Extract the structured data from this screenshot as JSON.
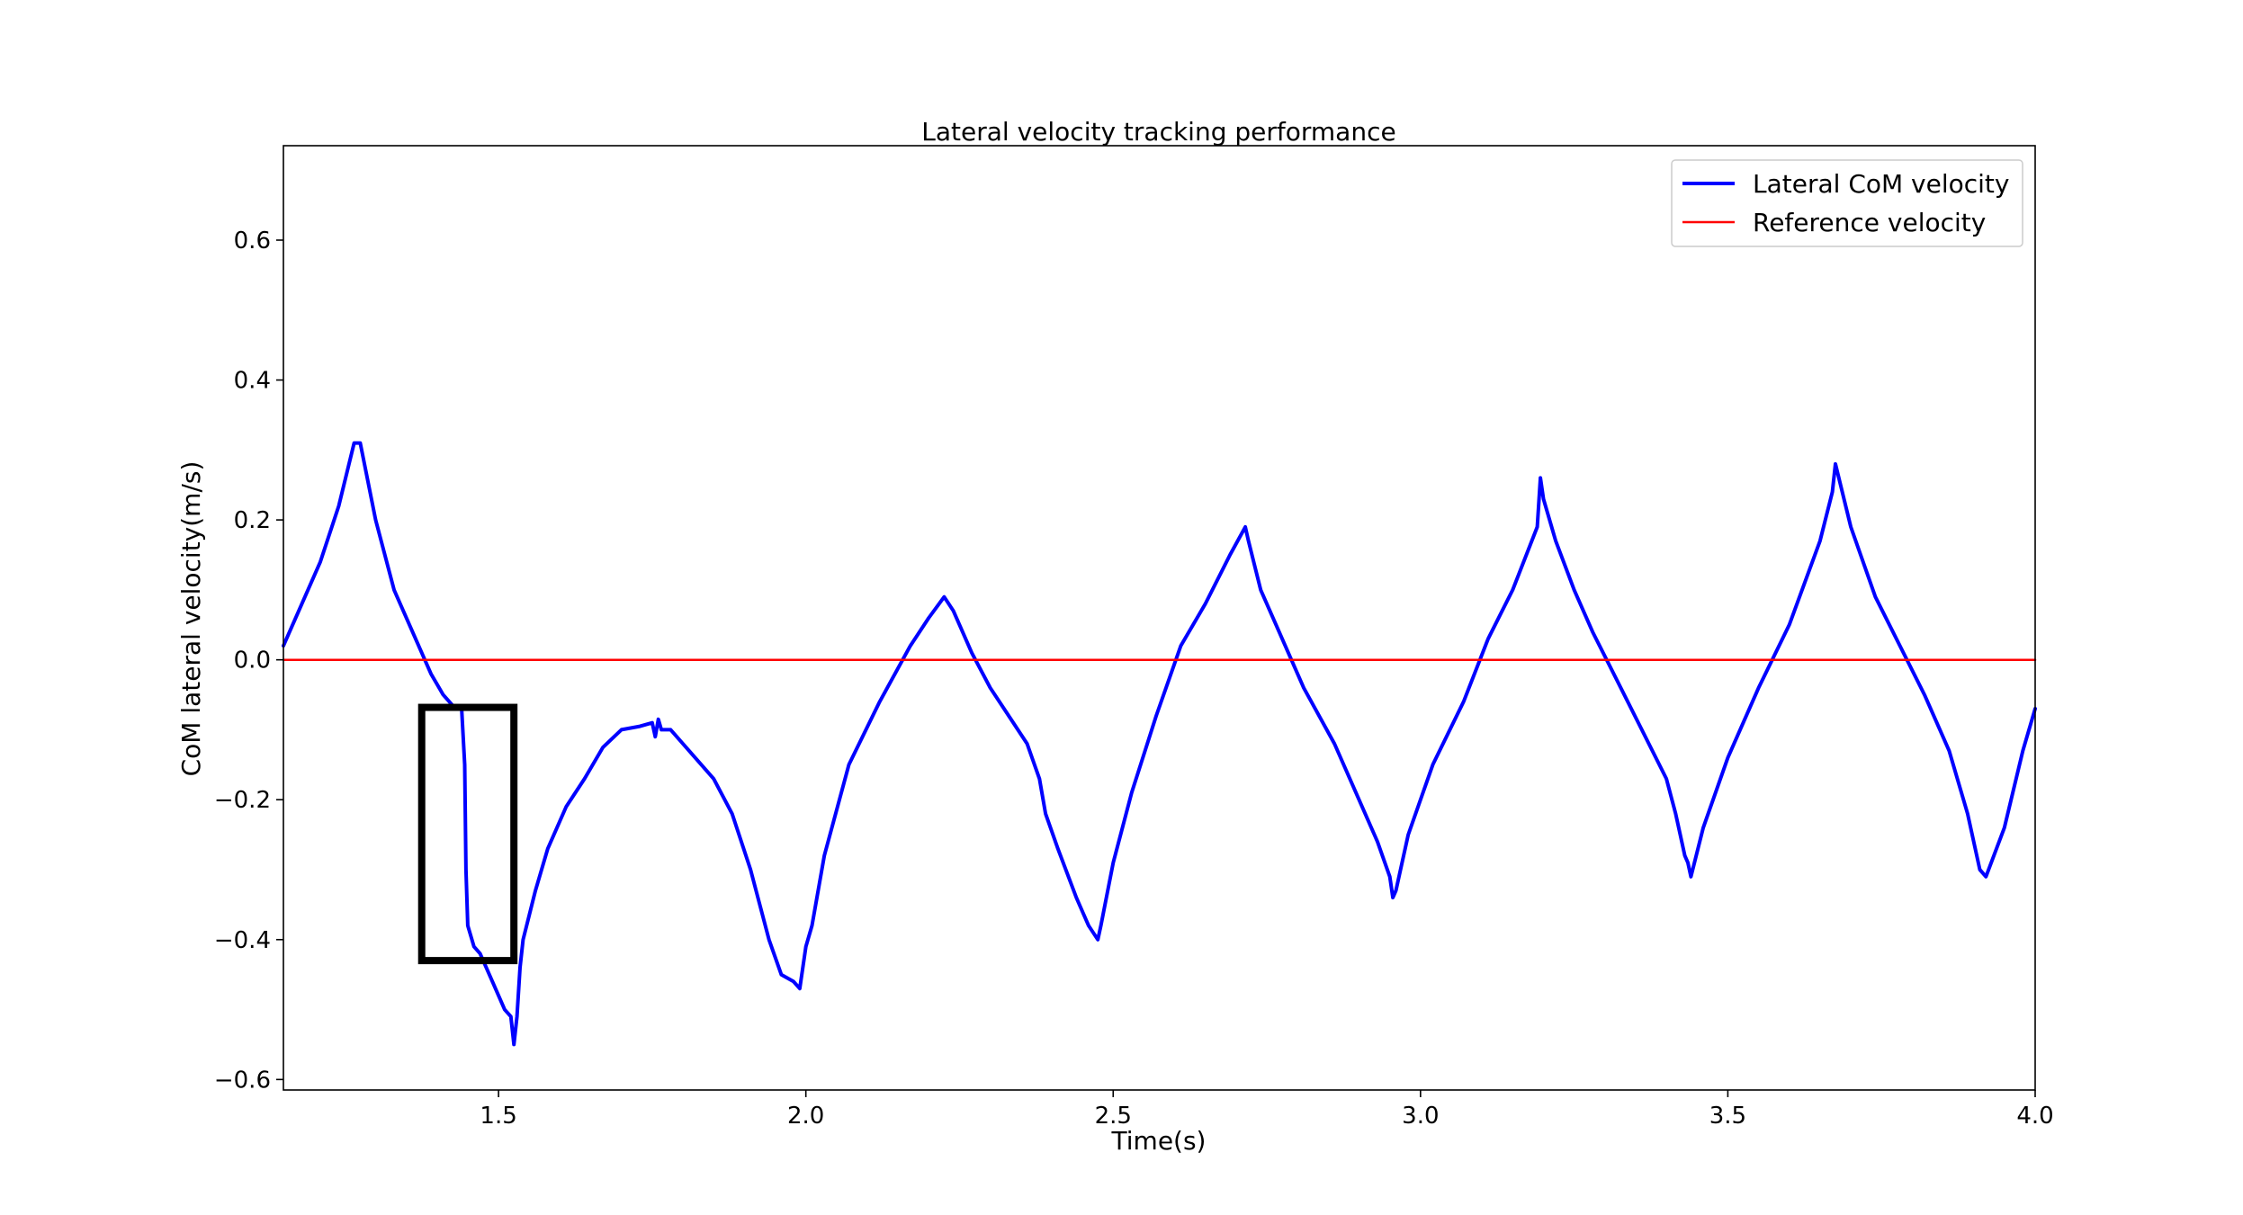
{
  "chart_data": {
    "type": "line",
    "title": "Lateral velocity tracking performance",
    "xlabel": "Time(s)",
    "ylabel": "CoM lateral velocity(m/s)",
    "xlim": [
      1.15,
      4.0
    ],
    "ylim": [
      -0.615,
      0.735
    ],
    "xticks": [
      1.5,
      2.0,
      2.5,
      3.0,
      3.5,
      4.0
    ],
    "xtick_labels": [
      "1.5",
      "2.0",
      "2.5",
      "3.0",
      "3.5",
      "4.0"
    ],
    "yticks": [
      -0.6,
      -0.4,
      -0.2,
      0.0,
      0.2,
      0.4,
      0.6
    ],
    "ytick_labels": [
      "−0.6",
      "−0.4",
      "−0.2",
      "0.0",
      "0.2",
      "0.4",
      "0.6"
    ],
    "grid": false,
    "legend_position": "top-right",
    "series": [
      {
        "name": "Lateral CoM velocity",
        "color": "#0000ff",
        "x": [
          1.15,
          1.18,
          1.21,
          1.24,
          1.265,
          1.275,
          1.3,
          1.33,
          1.36,
          1.39,
          1.41,
          1.43,
          1.44,
          1.445,
          1.447,
          1.45,
          1.46,
          1.47,
          1.49,
          1.51,
          1.52,
          1.525,
          1.53,
          1.535,
          1.54,
          1.56,
          1.58,
          1.61,
          1.64,
          1.67,
          1.7,
          1.73,
          1.75,
          1.755,
          1.76,
          1.765,
          1.78,
          1.81,
          1.85,
          1.88,
          1.91,
          1.94,
          1.96,
          1.98,
          1.99,
          1.995,
          2.0,
          2.01,
          2.03,
          2.07,
          2.12,
          2.17,
          2.2,
          2.225,
          2.24,
          2.27,
          2.3,
          2.33,
          2.36,
          2.38,
          2.39,
          2.41,
          2.44,
          2.46,
          2.475,
          2.48,
          2.5,
          2.53,
          2.57,
          2.61,
          2.65,
          2.69,
          2.715,
          2.72,
          2.74,
          2.77,
          2.81,
          2.86,
          2.9,
          2.93,
          2.95,
          2.955,
          2.96,
          2.98,
          3.02,
          3.07,
          3.11,
          3.15,
          3.19,
          3.195,
          3.2,
          3.22,
          3.25,
          3.28,
          3.32,
          3.36,
          3.4,
          3.415,
          3.42,
          3.43,
          3.435,
          3.44,
          3.46,
          3.5,
          3.55,
          3.6,
          3.65,
          3.67,
          3.675,
          3.7,
          3.74,
          3.78,
          3.82,
          3.86,
          3.89,
          3.91,
          3.92,
          3.95,
          3.98,
          4.0
        ],
        "y": [
          0.02,
          0.08,
          0.14,
          0.22,
          0.31,
          0.31,
          0.2,
          0.1,
          0.04,
          -0.02,
          -0.05,
          -0.07,
          -0.07,
          -0.15,
          -0.3,
          -0.38,
          -0.41,
          -0.42,
          -0.46,
          -0.5,
          -0.51,
          -0.55,
          -0.51,
          -0.44,
          -0.4,
          -0.33,
          -0.27,
          -0.21,
          -0.17,
          -0.125,
          -0.1,
          -0.095,
          -0.09,
          -0.11,
          -0.085,
          -0.1,
          -0.1,
          -0.13,
          -0.17,
          -0.22,
          -0.3,
          -0.4,
          -0.45,
          -0.46,
          -0.47,
          -0.44,
          -0.41,
          -0.38,
          -0.28,
          -0.15,
          -0.06,
          0.02,
          0.06,
          0.09,
          0.07,
          0.01,
          -0.04,
          -0.08,
          -0.12,
          -0.17,
          -0.22,
          -0.27,
          -0.34,
          -0.38,
          -0.4,
          -0.38,
          -0.29,
          -0.19,
          -0.08,
          0.02,
          0.08,
          0.15,
          0.19,
          0.17,
          0.1,
          0.04,
          -0.04,
          -0.12,
          -0.2,
          -0.26,
          -0.31,
          -0.34,
          -0.33,
          -0.25,
          -0.15,
          -0.06,
          0.03,
          0.1,
          0.19,
          0.26,
          0.23,
          0.17,
          0.1,
          0.04,
          -0.03,
          -0.1,
          -0.17,
          -0.22,
          -0.24,
          -0.28,
          -0.29,
          -0.31,
          -0.24,
          -0.14,
          -0.04,
          0.05,
          0.17,
          0.24,
          0.28,
          0.19,
          0.09,
          0.02,
          -0.05,
          -0.13,
          -0.22,
          -0.3,
          -0.31,
          -0.24,
          -0.13,
          -0.07
        ]
      },
      {
        "name": "Reference velocity",
        "color": "#ff0000",
        "x": [
          1.15,
          4.0
        ],
        "y": [
          0.0,
          0.0
        ]
      }
    ],
    "annotations": [
      {
        "type": "rectangle",
        "x0": 1.375,
        "x1": 1.525,
        "y0": -0.43,
        "y1": -0.068,
        "color": "#000000"
      }
    ]
  }
}
